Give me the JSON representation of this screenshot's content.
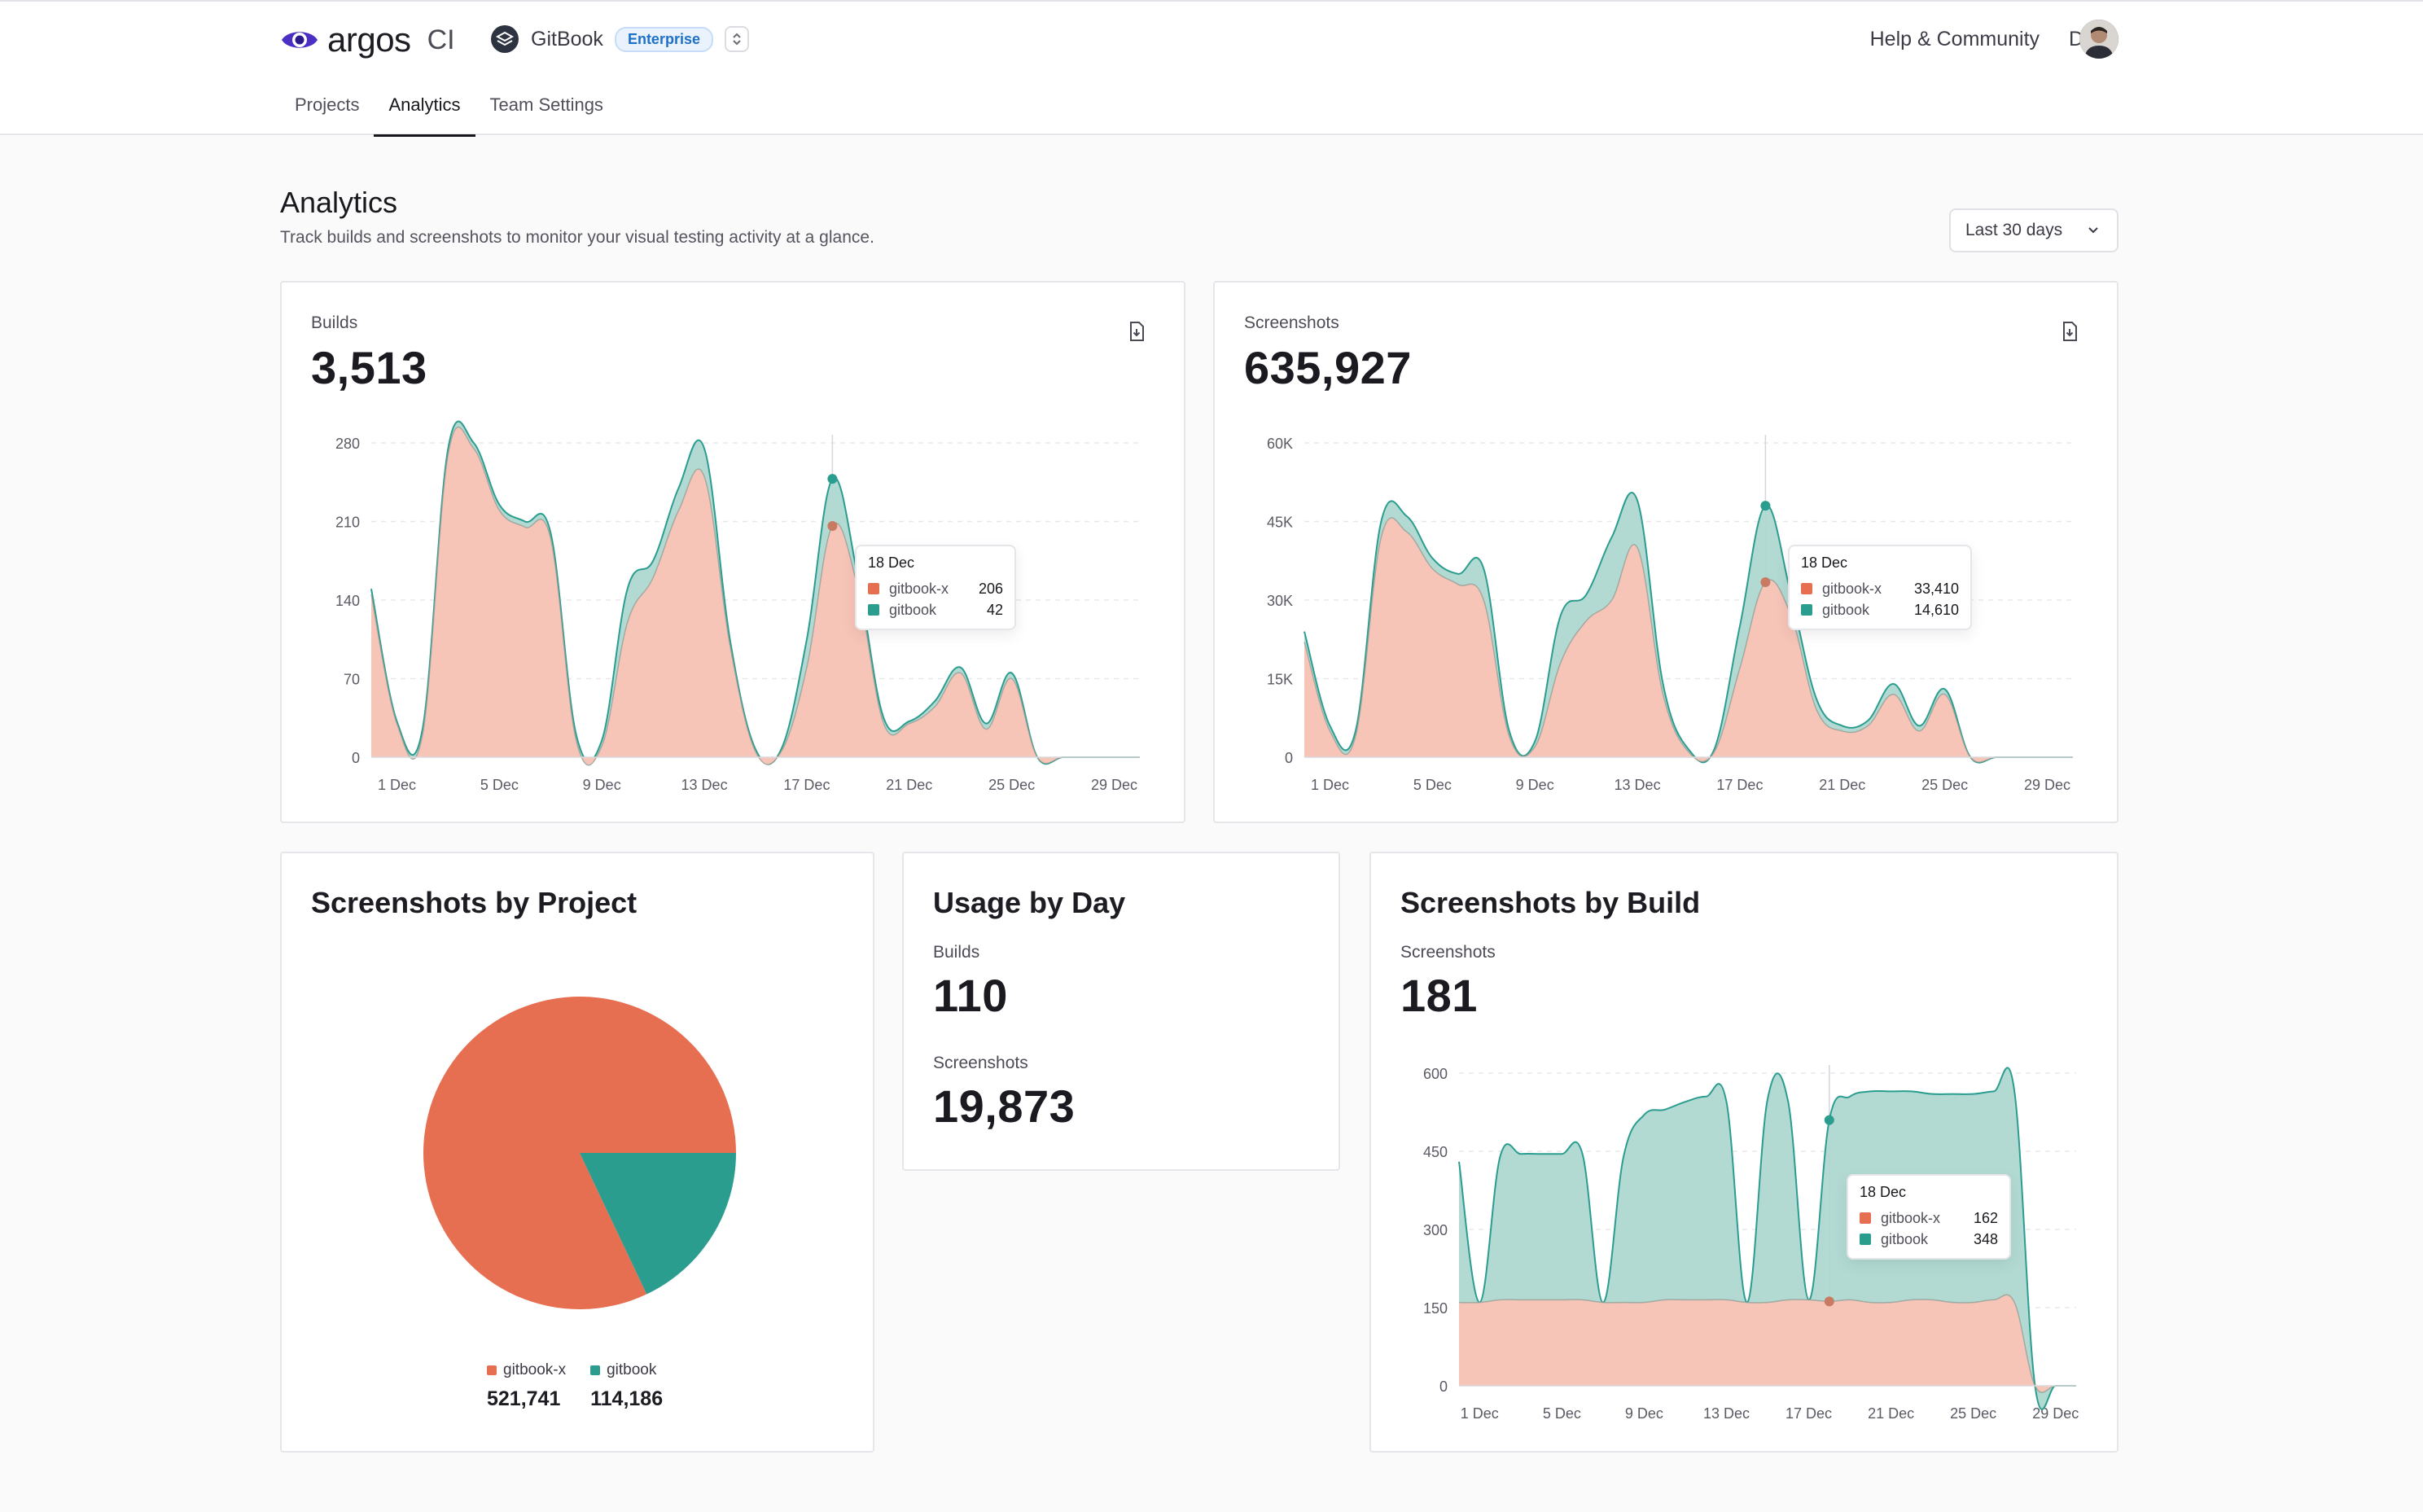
{
  "header": {
    "logo_text": "argos",
    "logo_suffix": "CI",
    "team_name": "GitBook",
    "plan_badge": "Enterprise",
    "nav": [
      "Help & Community",
      "Docs"
    ],
    "tabs": [
      {
        "label": "Projects"
      },
      {
        "label": "Analytics"
      },
      {
        "label": "Team Settings"
      }
    ]
  },
  "page": {
    "title": "Analytics",
    "subtitle": "Track builds and screenshots to monitor your visual testing activity at a glance.",
    "period": "Last 30 days"
  },
  "colors": {
    "gitbook_x": "#e76f51",
    "gitbook_x_fill": "#f7c4b8",
    "gitbook": "#2a9d8f",
    "gitbook_fill": "#aed8d1"
  },
  "builds_card": {
    "label": "Builds",
    "total": "3,513",
    "tooltip": {
      "date": "18 Dec",
      "rows": [
        {
          "name": "gitbook-x",
          "value": "206"
        },
        {
          "name": "gitbook",
          "value": "42"
        }
      ]
    }
  },
  "screenshots_card": {
    "label": "Screenshots",
    "total": "635,927",
    "tooltip": {
      "date": "18 Dec",
      "rows": [
        {
          "name": "gitbook-x",
          "value": "33,410"
        },
        {
          "name": "gitbook",
          "value": "14,610"
        }
      ]
    }
  },
  "project_card": {
    "title": "Screenshots by Project",
    "legend": [
      {
        "name": "gitbook-x",
        "value": "521,741"
      },
      {
        "name": "gitbook",
        "value": "114,186"
      }
    ]
  },
  "usage_card": {
    "title": "Usage by Day",
    "builds_label": "Builds",
    "builds_value": "110",
    "screenshots_label": "Screenshots",
    "screenshots_value": "19,873"
  },
  "build_card": {
    "title": "Screenshots by Build",
    "label": "Screenshots",
    "value": "181",
    "tooltip": {
      "date": "18 Dec",
      "rows": [
        {
          "name": "gitbook-x",
          "value": "162"
        },
        {
          "name": "gitbook",
          "value": "348"
        }
      ]
    }
  },
  "chart_data": [
    {
      "type": "area",
      "stacked": true,
      "x": [
        "30 Nov",
        "1 Dec",
        "2 Dec",
        "3 Dec",
        "4 Dec",
        "5 Dec",
        "6 Dec",
        "7 Dec",
        "8 Dec",
        "9 Dec",
        "10 Dec",
        "11 Dec",
        "12 Dec",
        "13 Dec",
        "14 Dec",
        "15 Dec",
        "16 Dec",
        "17 Dec",
        "18 Dec",
        "19 Dec",
        "20 Dec",
        "21 Dec",
        "22 Dec",
        "23 Dec",
        "24 Dec",
        "25 Dec",
        "26 Dec",
        "27 Dec",
        "28 Dec",
        "29 Dec",
        "30 Dec"
      ],
      "xticks": [
        "1 Dec",
        "5 Dec",
        "9 Dec",
        "13 Dec",
        "17 Dec",
        "21 Dec",
        "25 Dec",
        "29 Dec"
      ],
      "yticks": [
        "0",
        "70",
        "140",
        "210",
        "280"
      ],
      "ylim": [
        0,
        280
      ],
      "grid": true,
      "series": [
        {
          "name": "gitbook-x",
          "values": [
            145,
            30,
            20,
            270,
            275,
            220,
            205,
            195,
            15,
            10,
            120,
            160,
            220,
            250,
            100,
            5,
            5,
            80,
            206,
            150,
            30,
            30,
            45,
            75,
            25,
            70,
            0,
            0,
            0,
            0,
            0
          ]
        },
        {
          "name": "gitbook",
          "values": [
            5,
            2,
            5,
            5,
            5,
            5,
            5,
            5,
            5,
            5,
            30,
            15,
            20,
            25,
            5,
            2,
            2,
            25,
            42,
            10,
            5,
            2,
            5,
            5,
            5,
            5,
            0,
            0,
            0,
            0,
            0
          ]
        }
      ]
    },
    {
      "type": "area",
      "stacked": true,
      "x": [
        "30 Nov",
        "1 Dec",
        "2 Dec",
        "3 Dec",
        "4 Dec",
        "5 Dec",
        "6 Dec",
        "7 Dec",
        "8 Dec",
        "9 Dec",
        "10 Dec",
        "11 Dec",
        "12 Dec",
        "13 Dec",
        "14 Dec",
        "15 Dec",
        "16 Dec",
        "17 Dec",
        "18 Dec",
        "19 Dec",
        "20 Dec",
        "21 Dec",
        "22 Dec",
        "23 Dec",
        "24 Dec",
        "25 Dec",
        "26 Dec",
        "27 Dec",
        "28 Dec",
        "29 Dec",
        "30 Dec"
      ],
      "xticks": [
        "1 Dec",
        "5 Dec",
        "9 Dec",
        "13 Dec",
        "17 Dec",
        "21 Dec",
        "25 Dec",
        "29 Dec"
      ],
      "yticks": [
        "0",
        "15K",
        "30K",
        "45K",
        "60K"
      ],
      "ylim": [
        0,
        60000
      ],
      "grid": true,
      "series": [
        {
          "name": "gitbook-x",
          "values": [
            22000,
            5000,
            4000,
            42000,
            43000,
            36000,
            33000,
            30000,
            4000,
            2000,
            18000,
            26000,
            30000,
            40000,
            12000,
            1000,
            1000,
            17000,
            33410,
            27000,
            9000,
            5000,
            6000,
            12000,
            5000,
            12000,
            0,
            0,
            0,
            0,
            0
          ]
        },
        {
          "name": "gitbook",
          "values": [
            2000,
            1000,
            1000,
            3000,
            3000,
            2000,
            2000,
            6000,
            1000,
            1000,
            9000,
            5000,
            12000,
            9000,
            2000,
            500,
            500,
            8000,
            14610,
            4000,
            2000,
            1000,
            1000,
            2000,
            1000,
            1000,
            0,
            0,
            0,
            0,
            0
          ]
        }
      ]
    },
    {
      "type": "pie",
      "series": [
        {
          "name": "gitbook-x",
          "value": 521741
        },
        {
          "name": "gitbook",
          "value": 114186
        }
      ]
    },
    {
      "type": "area",
      "stacked": true,
      "x": [
        "30 Nov",
        "1 Dec",
        "2 Dec",
        "3 Dec",
        "4 Dec",
        "5 Dec",
        "6 Dec",
        "7 Dec",
        "8 Dec",
        "9 Dec",
        "10 Dec",
        "11 Dec",
        "12 Dec",
        "13 Dec",
        "14 Dec",
        "15 Dec",
        "16 Dec",
        "17 Dec",
        "18 Dec",
        "19 Dec",
        "20 Dec",
        "21 Dec",
        "22 Dec",
        "23 Dec",
        "24 Dec",
        "25 Dec",
        "26 Dec",
        "27 Dec",
        "28 Dec",
        "29 Dec",
        "30 Dec"
      ],
      "xticks": [
        "1 Dec",
        "5 Dec",
        "9 Dec",
        "13 Dec",
        "17 Dec",
        "21 Dec",
        "25 Dec",
        "29 Dec"
      ],
      "yticks": [
        "0",
        "150",
        "300",
        "450",
        "600"
      ],
      "ylim": [
        0,
        600
      ],
      "grid": true,
      "series": [
        {
          "name": "gitbook-x",
          "values": [
            160,
            160,
            165,
            165,
            165,
            165,
            165,
            160,
            160,
            160,
            165,
            165,
            165,
            165,
            160,
            160,
            165,
            165,
            162,
            165,
            160,
            160,
            165,
            165,
            160,
            160,
            165,
            160,
            0,
            0,
            0
          ]
        },
        {
          "name": "gitbook",
          "values": [
            270,
            0,
            275,
            280,
            280,
            280,
            280,
            0,
            280,
            360,
            365,
            380,
            390,
            380,
            0,
            390,
            380,
            0,
            348,
            390,
            405,
            405,
            400,
            395,
            400,
            400,
            400,
            405,
            0,
            0,
            0
          ]
        }
      ]
    }
  ]
}
